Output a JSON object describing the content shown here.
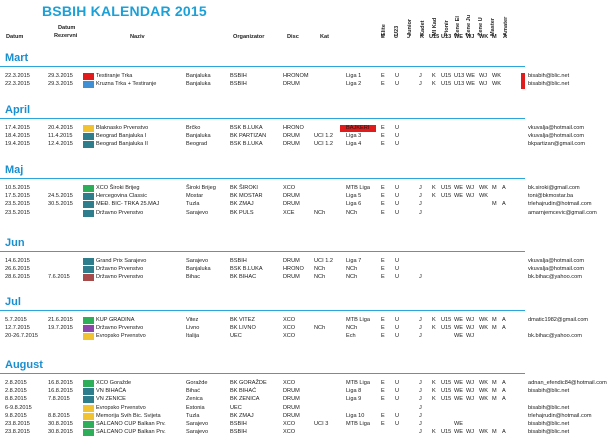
{
  "title": "BSBIH KALENDAR 2015",
  "headers": {
    "datum": "Datum",
    "datum_rez_1": "Datum",
    "datum_rez_2": "Rezervni",
    "naziv": "Naziv",
    "organizator": "Organizator",
    "disc": "Disc",
    "kat": "Kat",
    "vertical": [
      "Elite",
      "U23",
      "Junior",
      "Kadet",
      "Ml Kad",
      "Pionir",
      "Žene El",
      "Žene Ju",
      "Žene U",
      "Master",
      "Amater"
    ],
    "flags": [
      "E",
      "U",
      "J",
      "K",
      "U15",
      "U13",
      "WE",
      "WJ",
      "WK",
      "M",
      "A"
    ]
  },
  "colors": {
    "accent": "#1ba0d8",
    "red": "#e11b1b"
  },
  "months": [
    {
      "name": "Mart",
      "rows": [
        {
          "date": "22.3.2015",
          "res": "29.3.2015",
          "sw": "#e11b1b",
          "naziv": "Testiranje Trka",
          "place": "Banjaluka",
          "org": "BSBIH",
          "disc": "HRONOM",
          "kat": "",
          "liga": "Liga 1",
          "f": [
            "E",
            "U",
            "",
            "J",
            "K",
            "U15",
            "U13",
            "WE",
            "WJ",
            "WK",
            "",
            ""
          ],
          "email": "bisabih@blic.net"
        },
        {
          "date": "22.3.2015",
          "res": "29.3.2015",
          "sw": "#3f8fd4",
          "naziv": "Kruzna Trka + Testiranje",
          "place": "Banjaluka",
          "org": "BSBIH",
          "disc": "DRUM",
          "kat": "",
          "liga": "Liga 2",
          "f": [
            "E",
            "U",
            "",
            "J",
            "K",
            "U15",
            "U13",
            "WE",
            "WJ",
            "WK",
            "",
            ""
          ],
          "email": "bisabih@blic.net"
        }
      ]
    },
    {
      "name": "April",
      "rows": [
        {
          "date": "17.4.2015",
          "res": "20.4.2015",
          "sw": "#f1c232",
          "naziv": "Blaknasko Prvenstvo",
          "place": "Brčko",
          "org": "BSK B.LUKA",
          "disc": "HRONO",
          "kat": "",
          "liga": "BAJKERI",
          "f": [
            "E",
            "U",
            "",
            "",
            "",
            "",
            "",
            "",
            "",
            "",
            "",
            ""
          ],
          "email": "vkuvalja@hotmail.com"
        },
        {
          "date": "18.4.2015",
          "res": "11.4.2015",
          "sw": "#2e7d8c",
          "naziv": "Beograd Banjaluka I",
          "place": "Banjaluka",
          "org": "BK PARTIZAN",
          "disc": "DRUM",
          "kat": "UCI 1.2",
          "liga": "Liga 3",
          "f": [
            "E",
            "U",
            "",
            "",
            "",
            "",
            "",
            "",
            "",
            "",
            "",
            ""
          ],
          "email": "vkuvalja@hotmail.com"
        },
        {
          "date": "19.4.2015",
          "res": "12.4.2015",
          "sw": "#2e7d8c",
          "naziv": "Beograd Banjaluka II",
          "place": "Beograd",
          "org": "BSK B.LUKA",
          "disc": "DRUM",
          "kat": "UCI 1.2",
          "liga": "Liga 4",
          "f": [
            "E",
            "U",
            "",
            "",
            "",
            "",
            "",
            "",
            "",
            "",
            "",
            ""
          ],
          "email": "bkpartizan@gmail.com"
        }
      ]
    },
    {
      "name": "Maj",
      "rows": [
        {
          "date": "10.5.2015",
          "res": "",
          "sw": "#2fae5a",
          "naziv": "XCO Široki Brijeg",
          "place": "Široki Brijeg",
          "org": "BK ŠIROKI",
          "disc": "XCO",
          "kat": "",
          "liga": "MTB Liga",
          "f": [
            "E",
            "U",
            "",
            "J",
            "K",
            "U15",
            "WE",
            "WJ",
            "WK",
            "M",
            "A"
          ],
          "email": "bk.siroki@gmail.com"
        },
        {
          "date": "17.5.2015",
          "res": "24.5.2015",
          "sw": "#2e7d8c",
          "naziv": "Hercegovina Classic",
          "place": "Mostar",
          "org": "BK MOSTAR",
          "disc": "DRUM",
          "kat": "",
          "liga": "Liga 5",
          "f": [
            "E",
            "U",
            "",
            "J",
            "K",
            "U15",
            "WE",
            "WJ",
            "WK",
            "",
            ""
          ],
          "email": "toni@bkmostar.ba"
        },
        {
          "date": "23.5.2015",
          "res": "30.5.2015",
          "sw": "#2e7d8c",
          "naziv": "MEĐ. BIC- TRKA 25.MAJ",
          "place": "Tuzla",
          "org": "BK ZMAJ",
          "disc": "DRUM",
          "kat": "",
          "liga": "Liga 6",
          "f": [
            "E",
            "U",
            "",
            "J",
            "",
            "",
            "",
            "",
            "",
            "M",
            "A"
          ],
          "email": "trlehajrudin@hotmail.com"
        },
        {
          "date": "23.5.2015",
          "res": "",
          "sw": "#2e7d8c",
          "naziv": "Državno Prvenstvo",
          "place": "Sarajevo",
          "org": "BK PULS",
          "disc": "XCE",
          "kat": "NCh",
          "liga": "NCh",
          "f": [
            "E",
            "U",
            "",
            "J",
            "",
            "",
            "",
            "",
            "",
            "",
            ""
          ],
          "email": "amarnjemcevic@gmail.com"
        }
      ]
    },
    {
      "name": "Jun",
      "rows": [
        {
          "date": "14.6.2015",
          "res": "",
          "sw": "#2e7d8c",
          "naziv": "Grand Prix Sarajevo",
          "place": "Sarajevo",
          "org": "BSBIH",
          "disc": "DRUM",
          "kat": "UCI 1.2",
          "liga": "Liga 7",
          "f": [
            "E",
            "U",
            "",
            "",
            "",
            "",
            "",
            "",
            "",
            "",
            ""
          ],
          "email": "vkuvalja@hotmail.com"
        },
        {
          "date": "26.6.2015",
          "res": "",
          "sw": "#2e7d8c",
          "naziv": "Državno Prvenstvo",
          "place": "Banjaluka",
          "org": "BSK B.LUKA",
          "disc": "HRONO",
          "kat": "NCh",
          "liga": "NCh",
          "f": [
            "E",
            "U",
            "",
            "",
            "",
            "",
            "",
            "",
            "",
            "",
            ""
          ],
          "email": "vkuvalja@hotmail.com"
        },
        {
          "date": "28.6.2015",
          "res": "7.6.2015",
          "sw": "#a8494a",
          "naziv": "Državno Prvenstvo",
          "place": "Bihac",
          "org": "BK BIHAC",
          "disc": "DRUM",
          "kat": "NCh",
          "liga": "NCh",
          "f": [
            "E",
            "U",
            "",
            "J",
            "",
            "",
            "",
            "",
            "",
            "",
            ""
          ],
          "email": "bk.bihac@yahoo.com"
        }
      ]
    },
    {
      "name": "Jul",
      "rows": [
        {
          "date": "5.7.2015",
          "res": "21.6.2015",
          "sw": "#2fae5a",
          "naziv": "KUP GRADINA",
          "place": "Vitez",
          "org": "BK VITEZ",
          "disc": "XCO",
          "kat": "",
          "liga": "MTB Liga",
          "f": [
            "E",
            "U",
            "",
            "J",
            "K",
            "U15",
            "WE",
            "WJ",
            "WK",
            "M",
            "A"
          ],
          "email": "dmatic1982@gmail.com"
        },
        {
          "date": "12.7.2015",
          "res": "19.7.2015",
          "sw": "#8e44ad",
          "naziv": "Državno Prvenstvo",
          "place": "Livno",
          "org": "BK LIVNO",
          "disc": "XCO",
          "kat": "NCh",
          "liga": "NCh",
          "f": [
            "E",
            "U",
            "",
            "J",
            "K",
            "U15",
            "WE",
            "WJ",
            "WK",
            "M",
            "A"
          ],
          "email": ""
        },
        {
          "date": "20-26.7.2015",
          "res": "",
          "sw": "#f1c232",
          "naziv": "Evropsko Prvenstvo",
          "place": "Italija",
          "org": "UEC",
          "disc": "XCO",
          "kat": "",
          "liga": "Ech",
          "f": [
            "E",
            "U",
            "",
            "J",
            "",
            "",
            "WE",
            "WJ",
            "",
            "",
            ""
          ],
          "email": "bk.bihac@yahoo.com"
        }
      ]
    },
    {
      "name": "August",
      "rows": [
        {
          "date": "2.8.2015",
          "res": "16.8.2015",
          "sw": "#2fae5a",
          "naziv": "XCO Goražde",
          "place": "Goražde",
          "org": "BK GORAŽDE",
          "disc": "XCO",
          "kat": "",
          "liga": "MTB Liga",
          "f": [
            "E",
            "U",
            "",
            "J",
            "K",
            "U15",
            "WE",
            "WJ",
            "WK",
            "M",
            "A"
          ],
          "email": "adnan_efendic84@hotmail.com"
        },
        {
          "date": "2.8.2015",
          "res": "16.8.2015",
          "sw": "#2e7d8c",
          "naziv": "VN BIHAĆA",
          "place": "Bihać",
          "org": "BK BIHAĆ",
          "disc": "DRUM",
          "kat": "",
          "liga": "Liga 8",
          "f": [
            "E",
            "U",
            "",
            "J",
            "K",
            "U15",
            "WE",
            "WJ",
            "WK",
            "M",
            "A"
          ],
          "email": "bisabih@blic.net"
        },
        {
          "date": "8.8.2015",
          "res": "7.8.2015",
          "sw": "#2e7d8c",
          "naziv": "VN ZENICE",
          "place": "Zenica",
          "org": "BK ZENICA",
          "disc": "DRUM",
          "kat": "",
          "liga": "Liga 9",
          "f": [
            "E",
            "U",
            "",
            "J",
            "K",
            "U15",
            "WE",
            "WJ",
            "WK",
            "M",
            "A"
          ],
          "email": ""
        },
        {
          "date": "6-9.8.2015",
          "res": "",
          "sw": "#f1c232",
          "naziv": "Evropsko Prvenstvo",
          "place": "Estonia",
          "org": "UEC",
          "disc": "DRUM",
          "kat": "",
          "liga": "",
          "f": [
            "",
            "",
            "",
            "J",
            "",
            "",
            "",
            "",
            "",
            "",
            ""
          ],
          "email": "bisabih@blic.net"
        },
        {
          "date": "9.8.2015",
          "res": "8.8.2015",
          "sw": "#f1c232",
          "naziv": "Memorija Svih Bic. Svijeta",
          "place": "Tuzla",
          "org": "BK ZMAJ",
          "disc": "DRUM",
          "kat": "",
          "liga": "Liga 10",
          "f": [
            "E",
            "U",
            "",
            "J",
            "",
            "",
            "",
            "",
            "",
            "",
            ""
          ],
          "email": "trlehajrudin@hotmail.com"
        },
        {
          "date": "23.8.2015",
          "res": "30.8.2015",
          "sw": "#2fae5a",
          "naziv": "SALCANO CUP Balkan Prv.",
          "place": "Sarajevo",
          "org": "BSBIH",
          "disc": "XCO",
          "kat": "UCI 3",
          "liga": "MTB Liga",
          "f": [
            "E",
            "U",
            "",
            "J",
            "",
            "",
            "WE",
            "",
            "",
            "",
            ""
          ],
          "email": "bisabih@blic.net"
        },
        {
          "date": "23.8.2015",
          "res": "30.8.2015",
          "sw": "#2fae5a",
          "naziv": "SALCANO CUP Balkan Prv.",
          "place": "Sarajevo",
          "org": "BSBIH",
          "disc": "XCO",
          "kat": "",
          "liga": "",
          "f": [
            "",
            "",
            "",
            "J",
            "K",
            "U15",
            "WE",
            "WJ",
            "WK",
            "M",
            "A"
          ],
          "email": "bisabih@blic.net"
        }
      ]
    }
  ]
}
